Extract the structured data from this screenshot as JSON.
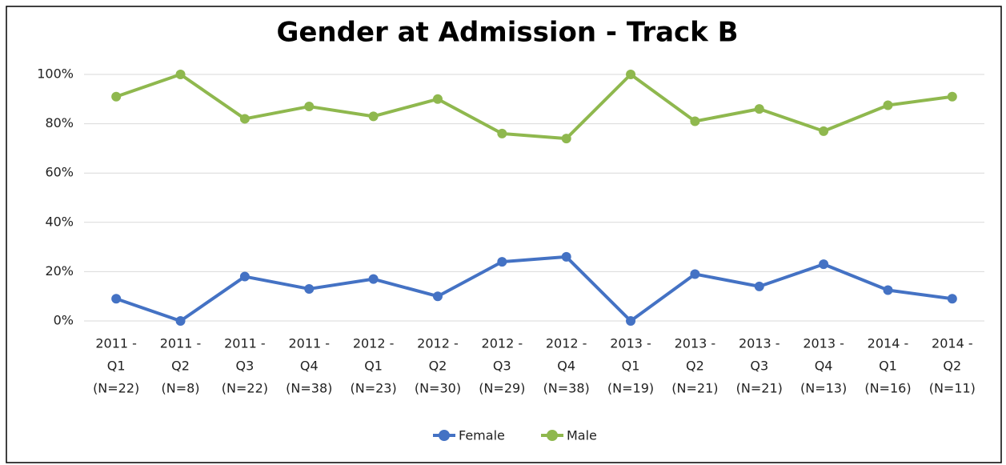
{
  "chart_data": {
    "type": "line",
    "title": "Gender at Admission - Track B",
    "categories": [
      [
        "2011 -",
        "Q1",
        "(N=22)"
      ],
      [
        "2011 -",
        "Q2",
        "(N=8)"
      ],
      [
        "2011 -",
        "Q3",
        "(N=22)"
      ],
      [
        "2011 -",
        "Q4",
        "(N=38)"
      ],
      [
        "2012 -",
        "Q1",
        "(N=23)"
      ],
      [
        "2012 -",
        "Q2",
        "(N=30)"
      ],
      [
        "2012 -",
        "Q3",
        "(N=29)"
      ],
      [
        "2012 -",
        "Q4",
        "(N=38)"
      ],
      [
        "2013 -",
        "Q1",
        "(N=19)"
      ],
      [
        "2013 -",
        "Q2",
        "(N=21)"
      ],
      [
        "2013 -",
        "Q3",
        "(N=21)"
      ],
      [
        "2013 -",
        "Q4",
        "(N=13)"
      ],
      [
        "2014 -",
        "Q1",
        "(N=16)"
      ],
      [
        "2014 -",
        "Q2",
        "(N=11)"
      ]
    ],
    "series": [
      {
        "name": "Female",
        "color": "#4472c4",
        "values": [
          9,
          0,
          18,
          13,
          17,
          10,
          24,
          26,
          0,
          19,
          14,
          23,
          12.5,
          9
        ]
      },
      {
        "name": "Male",
        "color": "#8fb84e",
        "values": [
          91,
          100,
          82,
          87,
          83,
          90,
          76,
          74,
          100,
          81,
          86,
          77,
          87.5,
          91
        ]
      }
    ],
    "ylim": [
      0,
      100
    ],
    "yticks": [
      {
        "value": 0,
        "label": "0%"
      },
      {
        "value": 20,
        "label": "20%"
      },
      {
        "value": 40,
        "label": "40%"
      },
      {
        "value": 60,
        "label": "60%"
      },
      {
        "value": 80,
        "label": "80%"
      },
      {
        "value": 100,
        "label": "100%"
      }
    ],
    "grid": true,
    "legend": "bottom"
  }
}
